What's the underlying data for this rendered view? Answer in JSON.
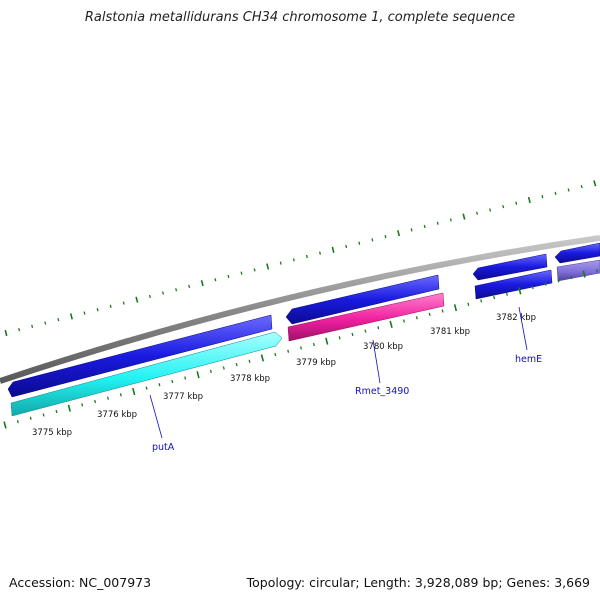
{
  "title": "Ralstonia metallidurans CH34 chromosome 1, complete sequence",
  "footer": {
    "accession": "Accession: NC_007973",
    "topology": "Topology: circular; Length: 3,928,089 bp; Genes: 3,669"
  },
  "colors": {
    "backbone": "#8a8a8a",
    "tick": "#1a7a1a",
    "gene_forward": "#1a1ae0",
    "gene_cyan": "#22f2f2",
    "gene_pink": "#f020a0",
    "gene_purple": "#8070d8",
    "label": "#1010c8"
  },
  "ticks": [
    {
      "label": "3775 kbp"
    },
    {
      "label": "3776 kbp"
    },
    {
      "label": "3777 kbp"
    },
    {
      "label": "3778 kbp"
    },
    {
      "label": "3779 kbp"
    },
    {
      "label": "3780 kbp"
    },
    {
      "label": "3781 kbp"
    },
    {
      "label": "3782 kbp"
    }
  ],
  "genes": [
    {
      "name": "putA",
      "strand": "reverse",
      "color": "cyan"
    },
    {
      "name": "Rmet_3490",
      "strand": "reverse",
      "color": "pink"
    },
    {
      "name": "hemE",
      "strand": "reverse",
      "color": "blue"
    }
  ]
}
